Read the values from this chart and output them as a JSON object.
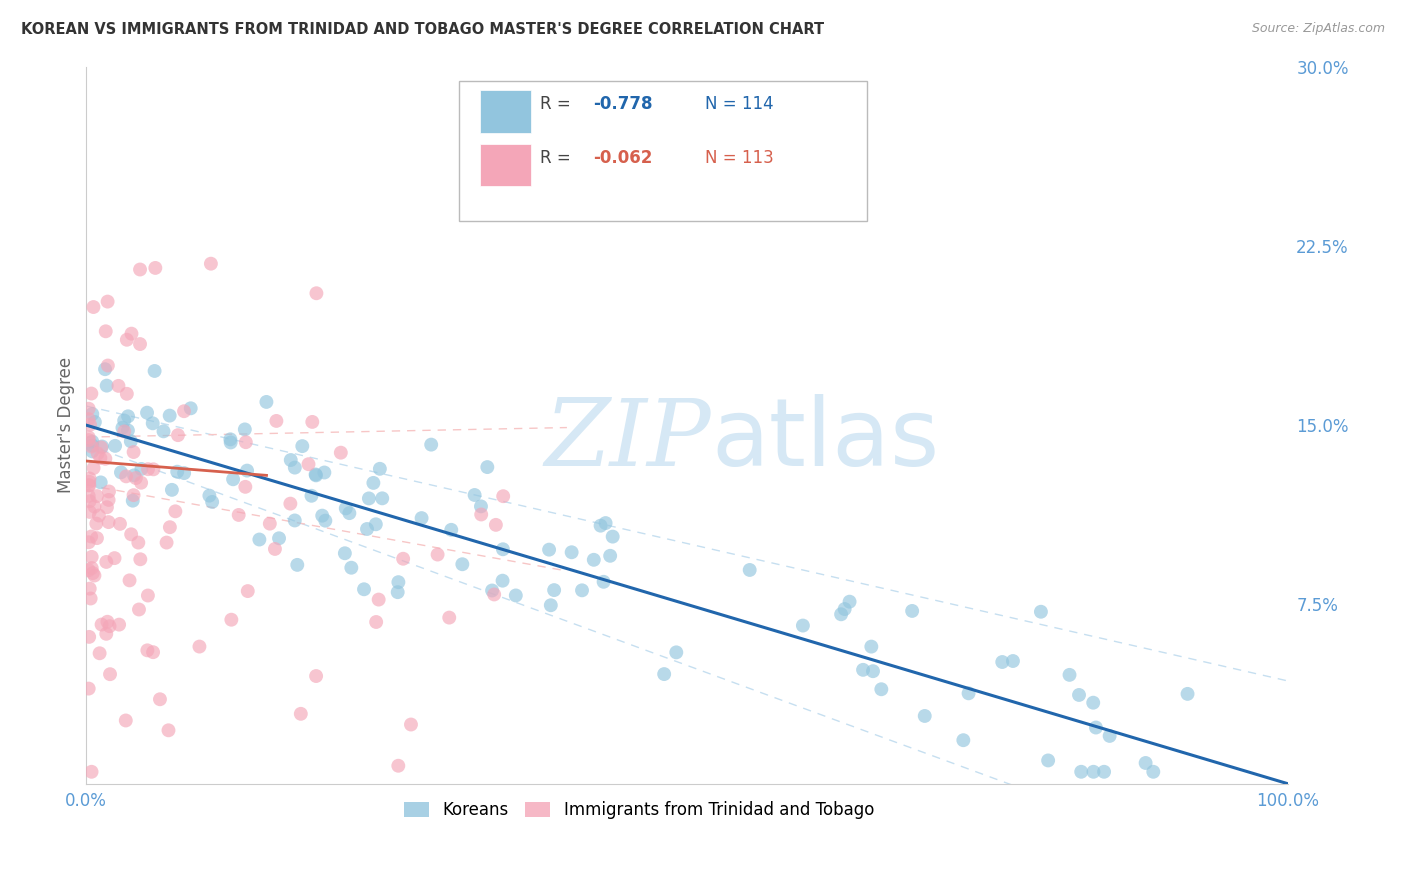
{
  "title": "KOREAN VS IMMIGRANTS FROM TRINIDAD AND TOBAGO MASTER'S DEGREE CORRELATION CHART",
  "source": "Source: ZipAtlas.com",
  "ylabel": "Master's Degree",
  "xlim": [
    0.0,
    100.0
  ],
  "ylim": [
    0.0,
    30.0
  ],
  "yticks": [
    0.0,
    7.5,
    15.0,
    22.5,
    30.0
  ],
  "ytick_labels": [
    "",
    "7.5%",
    "15.0%",
    "22.5%",
    "30.0%"
  ],
  "xticks": [
    0.0,
    20.0,
    40.0,
    60.0,
    80.0,
    100.0
  ],
  "xtick_labels": [
    "0.0%",
    "",
    "",
    "",
    "",
    "100.0%"
  ],
  "korean_R": "-0.778",
  "korean_N": "114",
  "tt_R": "-0.062",
  "tt_N": "113",
  "korean_color": "#92c5de",
  "tt_color": "#f4a6b8",
  "korean_line_color": "#2166ac",
  "tt_line_color": "#d6604d",
  "tt_line_dashed_color": "#f7c6c6",
  "korean_line_dashed_color": "#c6dff0",
  "watermark_color": "#d6e8f5",
  "background_color": "#ffffff",
  "grid_color": "#dddddd",
  "right_tick_color": "#5b9bd5",
  "title_color": "#333333",
  "source_color": "#999999",
  "ylabel_color": "#666666"
}
